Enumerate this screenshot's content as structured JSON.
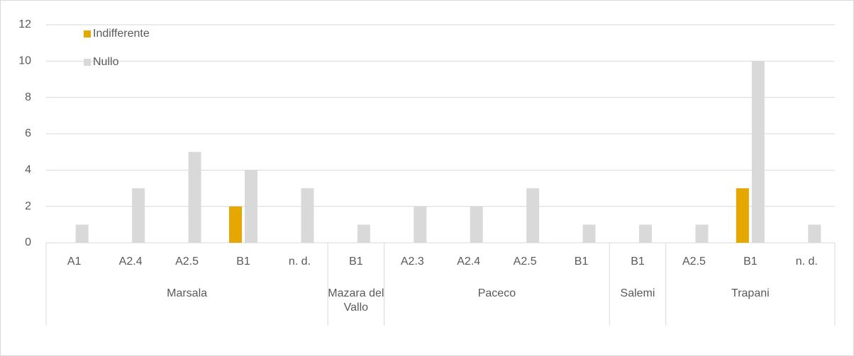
{
  "chart_data": {
    "type": "bar",
    "groups": [
      {
        "name": "Marsala",
        "categories": [
          "A1",
          "A2.4",
          "A2.5",
          "B1",
          "n. d."
        ]
      },
      {
        "name": "Mazara del Vallo",
        "categories": [
          "B1"
        ]
      },
      {
        "name": "Paceco",
        "categories": [
          "A2.3",
          "A2.4",
          "A2.5",
          "B1"
        ]
      },
      {
        "name": "Salemi",
        "categories": [
          "B1"
        ]
      },
      {
        "name": "Trapani",
        "categories": [
          "A2.5",
          "B1",
          "n. d."
        ]
      }
    ],
    "series": [
      {
        "name": "Indifferente",
        "color": "#e6a800",
        "values": [
          null,
          null,
          null,
          2,
          null,
          null,
          null,
          null,
          null,
          null,
          null,
          null,
          3,
          null
        ]
      },
      {
        "name": "Nullo",
        "color": "#d9d9d9",
        "values": [
          1,
          3,
          5,
          4,
          3,
          1,
          2,
          2,
          3,
          1,
          1,
          1,
          10,
          1
        ]
      }
    ],
    "ylim": [
      0,
      12
    ],
    "yticks": [
      0,
      2,
      4,
      6,
      8,
      10,
      12
    ],
    "grid": true,
    "legend": "top-left"
  }
}
